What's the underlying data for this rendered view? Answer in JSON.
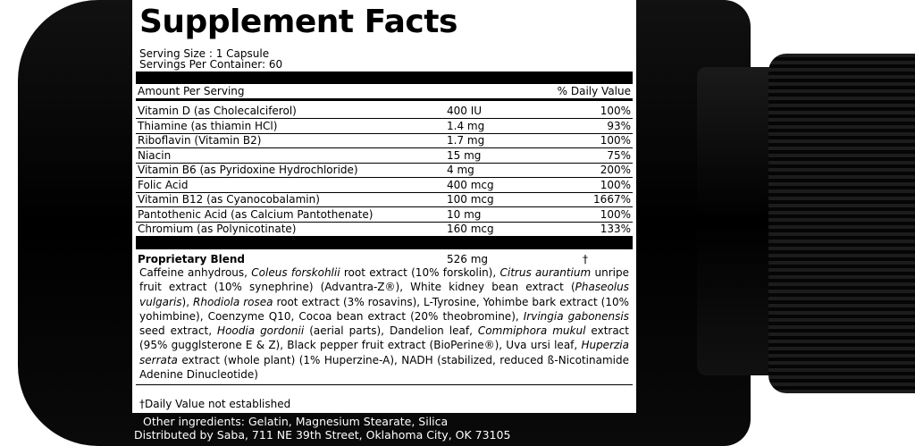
{
  "label": {
    "title": "Supplement Facts",
    "serving_size": "Serving Size : 1 Capsule",
    "servings_per_container": "Servings Per Container: 60",
    "header": {
      "amount": "Amount Per Serving",
      "daily_value": "% Daily Value"
    },
    "rows": [
      [
        "Vitamin D (as Cholecalciferol)",
        "400 IU",
        "100%"
      ],
      [
        "Thiamine  (as thiamin HCl)",
        "1.4 mg",
        "93%"
      ],
      [
        "Riboflavin (Vitamin B2)",
        "1.7 mg",
        "100%"
      ],
      [
        "Niacin",
        "15 mg",
        "75%"
      ],
      [
        "Vitamin B6 (as Pyridoxine Hydrochloride)",
        "4 mg",
        "200%"
      ],
      [
        "Folic Acid",
        "400 mcg",
        "100%"
      ],
      [
        "Vitamin B12 (as Cyanocobalamin)",
        "100 mcg",
        "1667%"
      ],
      [
        "Pantothenic Acid (as Calcium Pantothenate)",
        "10 mg",
        "100%"
      ],
      [
        "Chromium (as Polynicotinate)",
        "160 mcg",
        "133%"
      ]
    ],
    "blend": {
      "name": "Proprietary Blend",
      "amount": "526 mg",
      "mark": "†",
      "description": [
        {
          "text": "Caffeine anhydrous, ",
          "italic": false
        },
        {
          "text": "Coleus forskohlii",
          "italic": true
        },
        {
          "text": " root extract (10% forskolin), ",
          "italic": false
        },
        {
          "text": "Citrus aurantium",
          "italic": true
        },
        {
          "text": " unripe fruit extract (10% synephrine) (Advantra-Z®), White kidney bean extract (",
          "italic": false
        },
        {
          "text": "Phaseolus vulgaris",
          "italic": true
        },
        {
          "text": "), ",
          "italic": false
        },
        {
          "text": "Rhodiola rosea",
          "italic": true
        },
        {
          "text": " root extract (3% rosavins), L-Tyrosine, Yohimbe bark extract (10% yohimbine), Coenzyme Q10, Cocoa bean extract (20% theobromine), ",
          "italic": false
        },
        {
          "text": "Irvingia gabonensis",
          "italic": true
        },
        {
          "text": " seed extract, ",
          "italic": false
        },
        {
          "text": "Hoodia gordonii",
          "italic": true
        },
        {
          "text": " (aerial parts), Dandelion leaf, ",
          "italic": false
        },
        {
          "text": "Commiphora mukul",
          "italic": true
        },
        {
          "text": " extract (95% gugglsterone E & Z), Black pepper fruit extract (BioPerine®), Uva ursi leaf, ",
          "italic": false
        },
        {
          "text": "Huperzia serrata",
          "italic": true
        },
        {
          "text": " extract (whole plant) (1% Huperzine-A), NADH (stabilized, reduced ß-Nicotinamide Adenine Dinucleotide)",
          "italic": false
        }
      ]
    },
    "footnote": "†Daily Value not established",
    "other_ingredients": "Other ingredients: Gelatin, Magnesium Stearate, Silica",
    "distributor": "Distributed by Saba, 711 NE 39th Street, Oklahoma City, OK  73105"
  }
}
